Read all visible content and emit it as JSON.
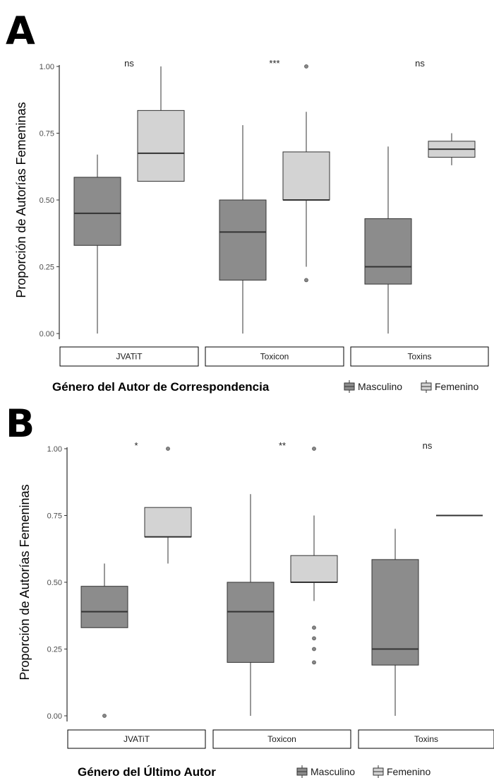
{
  "colors": {
    "masculino": "#8c8c8c",
    "femenino": "#d3d3d3",
    "stroke": "#333333"
  },
  "chart_data": [
    {
      "type": "box",
      "panel": "A",
      "ylabel": "Proporción de Autorías Femeninas",
      "ylim": [
        0,
        1
      ],
      "yticks": [
        "0.00",
        "0.25",
        "0.50",
        "0.75",
        "1.00"
      ],
      "facets": [
        "JVATiT",
        "Toxicon",
        "Toxins"
      ],
      "legend_title": "Género del Autor de Correspondencia",
      "legend": [
        "Masculino",
        "Femenino"
      ],
      "groups": [
        {
          "facet": "JVATiT",
          "significance": "ns",
          "boxes": [
            {
              "series": "Masculino",
              "min": 0.0,
              "q1": 0.33,
              "median": 0.45,
              "q3": 0.585,
              "max": 0.67,
              "outliers": []
            },
            {
              "series": "Femenino",
              "min": 0.57,
              "q1": 0.57,
              "median": 0.675,
              "q3": 0.835,
              "max": 1.0,
              "outliers": []
            }
          ]
        },
        {
          "facet": "Toxicon",
          "significance": "***",
          "boxes": [
            {
              "series": "Masculino",
              "min": 0.0,
              "q1": 0.2,
              "median": 0.38,
              "q3": 0.5,
              "max": 0.78,
              "outliers": []
            },
            {
              "series": "Femenino",
              "min": 0.25,
              "q1": 0.5,
              "median": 0.5,
              "q3": 0.68,
              "max": 0.83,
              "outliers": [
                0.2,
                1.0
              ]
            }
          ]
        },
        {
          "facet": "Toxins",
          "significance": "ns",
          "boxes": [
            {
              "series": "Masculino",
              "min": 0.0,
              "q1": 0.185,
              "median": 0.25,
              "q3": 0.43,
              "max": 0.7,
              "outliers": []
            },
            {
              "series": "Femenino",
              "min": 0.63,
              "q1": 0.66,
              "median": 0.69,
              "q3": 0.72,
              "max": 0.75,
              "outliers": []
            }
          ]
        }
      ]
    },
    {
      "type": "box",
      "panel": "B",
      "ylabel": "Proporción de Autorías Femeninas",
      "ylim": [
        0,
        1
      ],
      "yticks": [
        "0.00",
        "0.25",
        "0.50",
        "0.75",
        "1.00"
      ],
      "facets": [
        "JVATiT",
        "Toxicon",
        "Toxins"
      ],
      "legend_title": "Género del Último Autor",
      "legend": [
        "Masculino",
        "Femenino"
      ],
      "groups": [
        {
          "facet": "JVATiT",
          "significance": "*",
          "boxes": [
            {
              "series": "Masculino",
              "min": 0.33,
              "q1": 0.33,
              "median": 0.39,
              "q3": 0.485,
              "max": 0.57,
              "outliers": [
                0.0
              ]
            },
            {
              "series": "Femenino",
              "min": 0.57,
              "q1": 0.67,
              "median": 0.67,
              "q3": 0.78,
              "max": 0.78,
              "outliers": [
                1.0
              ]
            }
          ]
        },
        {
          "facet": "Toxicon",
          "significance": "**",
          "boxes": [
            {
              "series": "Masculino",
              "min": 0.0,
              "q1": 0.2,
              "median": 0.39,
              "q3": 0.5,
              "max": 0.83,
              "outliers": []
            },
            {
              "series": "Femenino",
              "min": 0.43,
              "q1": 0.5,
              "median": 0.5,
              "q3": 0.6,
              "max": 0.75,
              "outliers": [
                0.2,
                0.25,
                0.29,
                0.33,
                1.0
              ]
            }
          ]
        },
        {
          "facet": "Toxins",
          "significance": "ns",
          "boxes": [
            {
              "series": "Masculino",
              "min": 0.0,
              "q1": 0.19,
              "median": 0.25,
              "q3": 0.585,
              "max": 0.7,
              "outliers": []
            },
            {
              "series": "Femenino",
              "min": 0.75,
              "q1": 0.75,
              "median": 0.75,
              "q3": 0.75,
              "max": 0.75,
              "outliers": []
            }
          ]
        }
      ]
    }
  ]
}
